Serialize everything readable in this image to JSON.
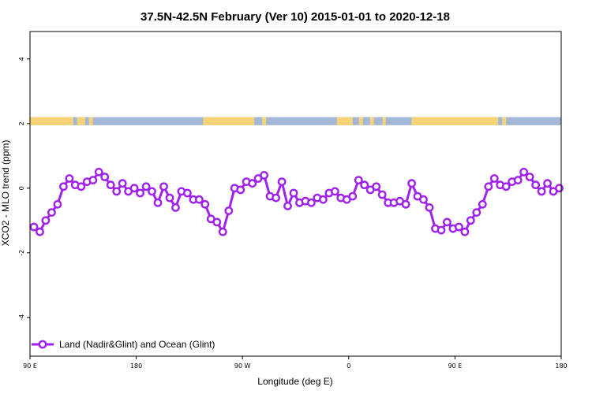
{
  "chart_data": {
    "type": "line",
    "title": "37.5N-42.5N February (Ver 10)   2015-01-01 to 2020-12-18",
    "xlabel": "Longitude (deg E)",
    "ylabel": "XCO2 - MLO trend (ppm)",
    "xlim": [
      0,
      675
    ],
    "ylim": [
      -5.2,
      4.85
    ],
    "x_ticks": [
      {
        "value": 0,
        "label": "90 E"
      },
      {
        "value": 135,
        "label": "180"
      },
      {
        "value": 270,
        "label": "90 W"
      },
      {
        "value": 405,
        "label": "0"
      },
      {
        "value": 540,
        "label": "90 E"
      },
      {
        "value": 675,
        "label": "180"
      }
    ],
    "y_ticks": [
      {
        "value": -4,
        "label": "-4"
      },
      {
        "value": -2,
        "label": "-2"
      },
      {
        "value": 0,
        "label": "0"
      },
      {
        "value": 2,
        "label": "2"
      },
      {
        "value": 4,
        "label": "4"
      }
    ],
    "series": [
      {
        "name": "Land (Nadir&Glint) and Ocean (Glint)",
        "color": "#a020f0",
        "x": [
          5,
          12.5,
          20,
          27.5,
          35,
          42.5,
          50,
          57.5,
          65,
          72.5,
          80,
          87.5,
          95,
          102.5,
          110,
          117.5,
          125,
          132.5,
          140,
          147.5,
          155,
          162.5,
          170,
          177.5,
          185,
          192.5,
          200,
          207.5,
          215,
          222.5,
          230,
          237.5,
          245,
          252.5,
          260,
          267.5,
          275,
          282.5,
          290,
          297.5,
          305,
          312.5,
          320,
          327.5,
          335,
          342.5,
          350,
          357.5,
          365,
          372.5,
          380,
          387.5,
          395,
          402.5,
          410,
          417.5,
          425,
          432.5,
          440,
          447.5,
          455,
          462.5,
          470,
          477.5,
          485,
          492.5,
          500,
          507.5,
          515,
          522.5,
          530,
          537.5,
          545,
          552.5,
          560,
          567.5,
          575,
          582.5,
          590,
          597.5,
          605,
          612.5,
          620,
          627.5,
          635,
          642.5,
          650,
          657.5,
          665,
          672.5
        ],
        "values": [
          -1.2,
          -1.35,
          -1.0,
          -0.75,
          -0.5,
          0.05,
          0.3,
          0.1,
          0.05,
          0.2,
          0.25,
          0.5,
          0.35,
          0.1,
          -0.1,
          0.15,
          -0.1,
          0.0,
          -0.15,
          0.05,
          -0.1,
          -0.45,
          0.05,
          -0.3,
          -0.6,
          -0.1,
          -0.15,
          -0.35,
          -0.35,
          -0.5,
          -0.95,
          -1.05,
          -1.35,
          -0.7,
          0.0,
          -0.05,
          0.2,
          0.15,
          0.3,
          0.4,
          -0.25,
          -0.3,
          0.2,
          -0.55,
          -0.15,
          -0.45,
          -0.4,
          -0.45,
          -0.3,
          -0.35,
          -0.15,
          -0.1,
          -0.3,
          -0.35,
          -0.25,
          0.25,
          0.1,
          -0.05,
          0.05,
          -0.2,
          -0.45,
          -0.45,
          -0.4,
          -0.5,
          0.15,
          -0.25,
          -0.35,
          -0.6,
          -1.25,
          -1.3,
          -1.05,
          -1.25,
          -1.2,
          -1.35,
          -1.0,
          -0.75,
          -0.5,
          0.05,
          0.3,
          0.1,
          0.05,
          0.2,
          0.25,
          0.5,
          0.35,
          0.1,
          -0.1,
          0.15,
          -0.1,
          0.0
        ]
      }
    ],
    "land_ocean_strip": {
      "y_range": [
        1.95,
        2.2
      ],
      "ocean_color": "#a3b8d6",
      "land_color": "#f5d376",
      "land_segments": [
        [
          0,
          55
        ],
        [
          60,
          70
        ],
        [
          75,
          80
        ],
        [
          220,
          285
        ],
        [
          295,
          300
        ],
        [
          390,
          410
        ],
        [
          418,
          423
        ],
        [
          432,
          437
        ],
        [
          448,
          452
        ],
        [
          485,
          595
        ],
        [
          600,
          605
        ]
      ]
    },
    "legend": {
      "placement": "bottom-left"
    },
    "grid": false
  }
}
